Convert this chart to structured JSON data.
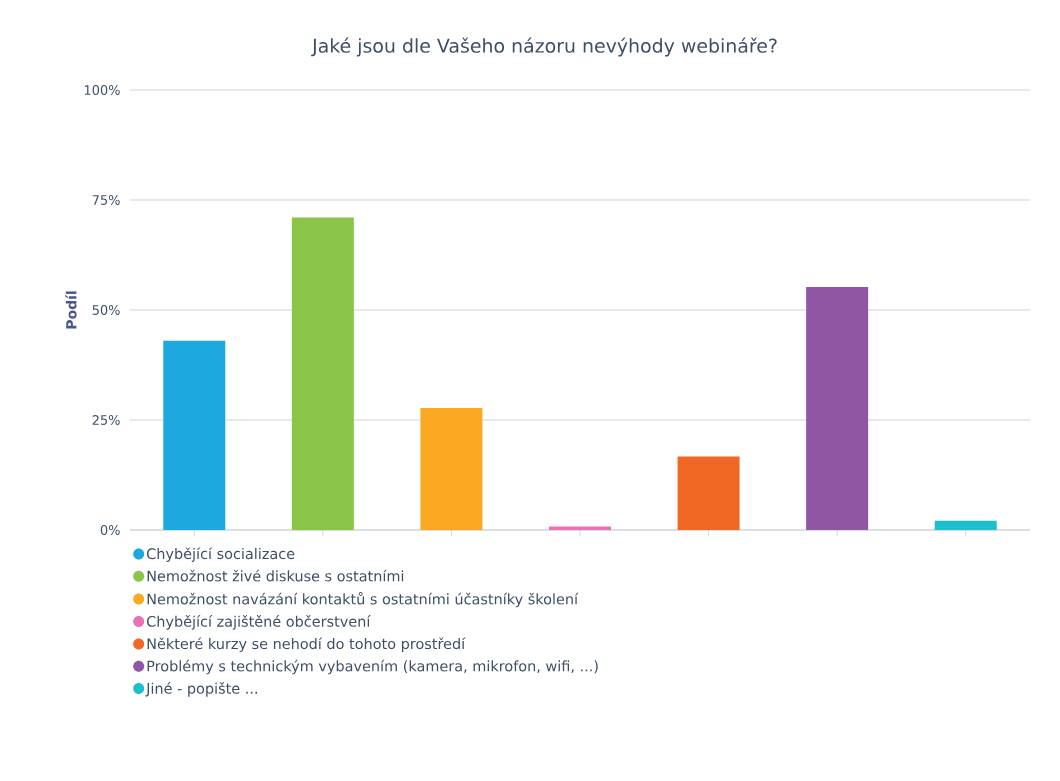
{
  "chart_data": {
    "type": "bar",
    "title": "Jaké jsou dle Vašeho názoru nevýhody webináře?",
    "ylabel": "Podíl",
    "categories": [
      null,
      null,
      null,
      null,
      null,
      null,
      null
    ],
    "series": [
      {
        "name": "Chybějící socializace",
        "color": "#1ea8e0",
        "values": [
          43,
          null,
          null,
          null,
          null,
          null,
          null
        ]
      },
      {
        "name": "Nemožnost živé diskuse s ostatními",
        "color": "#8bc547",
        "values": [
          null,
          71,
          null,
          null,
          null,
          null,
          null
        ]
      },
      {
        "name": "Nemožnost navázání kontaktů s ostatními účastníky školení",
        "color": "#fba823",
        "values": [
          null,
          null,
          27.7,
          null,
          null,
          null,
          null
        ]
      },
      {
        "name": "Chybějící zajištěné občerstvení",
        "color": "#e872b5",
        "values": [
          null,
          null,
          null,
          0.8,
          null,
          null,
          null
        ]
      },
      {
        "name": "Některé kurzy se nehodí do tohoto prostředí",
        "color": "#f06823",
        "values": [
          null,
          null,
          null,
          null,
          16.7,
          null,
          null
        ]
      },
      {
        "name": "Problémy s technickým vybavením (kamera, mikrofon, wifi, ...)",
        "color": "#8f56a3",
        "values": [
          null,
          null,
          null,
          null,
          null,
          55.2,
          null
        ]
      },
      {
        "name": "Jiné - popište ...",
        "color": "#1dbfcf",
        "values": [
          null,
          null,
          null,
          null,
          null,
          null,
          2.1
        ]
      }
    ],
    "ylim": [
      0,
      100
    ],
    "yticks": [
      {
        "value": 0,
        "label": "0%"
      },
      {
        "value": 25,
        "label": "25%"
      },
      {
        "value": 50,
        "label": "50%"
      },
      {
        "value": 75,
        "label": "75%"
      },
      {
        "value": 100,
        "label": "100%"
      }
    ],
    "grid": "y",
    "legend": "bottom",
    "tick_labels": "y"
  }
}
